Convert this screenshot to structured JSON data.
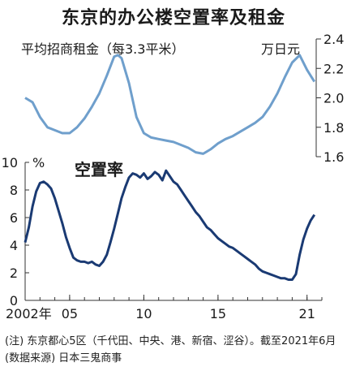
{
  "title": "东京的办公楼空置率及租金",
  "notes": {
    "line1": "(注) 东京都心5区（千代田、中央、港、新宿、涩谷）。截至2021年6月",
    "line2": "(数据来源) 日本三鬼商事"
  },
  "colors": {
    "rent": "#6f9fcc",
    "vacancy": "#1a3a73",
    "axis": "#333333"
  },
  "chart_data": [
    {
      "type": "line",
      "title": "平均招商租金（每3.3平米）",
      "ylabel": "万日元",
      "ylim": [
        1.6,
        2.4
      ],
      "yticks": [
        "1.6",
        "1.8",
        "2.0",
        "2.2",
        "2.4"
      ],
      "y_axis_side": "right",
      "series": [
        {
          "x": [
            2002.0,
            2002.5,
            2003.0,
            2003.5,
            2004.0,
            2004.5,
            2005.0,
            2005.5,
            2006.0,
            2006.5,
            2007.0,
            2007.5,
            2008.0,
            2008.25,
            2008.5,
            2009.0,
            2009.5,
            2010.0,
            2010.5,
            2011.0,
            2011.5,
            2012.0,
            2012.5,
            2013.0,
            2013.5,
            2014.0,
            2014.5,
            2015.0,
            2015.5,
            2016.0,
            2016.5,
            2017.0,
            2017.5,
            2018.0,
            2018.5,
            2019.0,
            2019.5,
            2020.0,
            2020.5,
            2021.0,
            2021.5
          ],
          "values": [
            2.0,
            1.97,
            1.87,
            1.8,
            1.78,
            1.76,
            1.76,
            1.8,
            1.86,
            1.94,
            2.03,
            2.15,
            2.28,
            2.29,
            2.27,
            2.1,
            1.87,
            1.76,
            1.73,
            1.72,
            1.71,
            1.7,
            1.68,
            1.66,
            1.63,
            1.62,
            1.65,
            1.69,
            1.72,
            1.74,
            1.77,
            1.8,
            1.83,
            1.87,
            1.94,
            2.03,
            2.14,
            2.24,
            2.29,
            2.19,
            2.11
          ]
        }
      ]
    },
    {
      "type": "line",
      "title": "空置率",
      "ylabel": "%",
      "ylim": [
        0,
        10
      ],
      "yticks": [
        "0",
        "2",
        "4",
        "6",
        "8",
        "10"
      ],
      "xlim": [
        2002,
        2022
      ],
      "xticks": [
        {
          "v": 2002,
          "label": "2002年"
        },
        {
          "v": 2005,
          "label": "05"
        },
        {
          "v": 2010,
          "label": "10"
        },
        {
          "v": 2015,
          "label": "15"
        },
        {
          "v": 2021,
          "label": "21"
        }
      ],
      "series": [
        {
          "x": [
            2002.0,
            2002.25,
            2002.5,
            2002.75,
            2003.0,
            2003.25,
            2003.5,
            2003.75,
            2004.0,
            2004.25,
            2004.5,
            2004.75,
            2005.0,
            2005.25,
            2005.5,
            2005.75,
            2006.0,
            2006.25,
            2006.5,
            2006.75,
            2007.0,
            2007.25,
            2007.5,
            2007.75,
            2008.0,
            2008.25,
            2008.5,
            2008.75,
            2009.0,
            2009.25,
            2009.5,
            2009.75,
            2010.0,
            2010.25,
            2010.5,
            2010.75,
            2011.0,
            2011.25,
            2011.5,
            2011.75,
            2012.0,
            2012.25,
            2012.5,
            2012.75,
            2013.0,
            2013.25,
            2013.5,
            2013.75,
            2014.0,
            2014.25,
            2014.5,
            2014.75,
            2015.0,
            2015.25,
            2015.5,
            2015.75,
            2016.0,
            2016.25,
            2016.5,
            2016.75,
            2017.0,
            2017.25,
            2017.5,
            2017.75,
            2018.0,
            2018.25,
            2018.5,
            2018.75,
            2019.0,
            2019.25,
            2019.5,
            2019.75,
            2020.0,
            2020.25,
            2020.5,
            2020.75,
            2021.0,
            2021.25,
            2021.5
          ],
          "values": [
            4.2,
            5.3,
            6.8,
            7.9,
            8.5,
            8.6,
            8.4,
            8.1,
            7.4,
            6.5,
            5.6,
            4.6,
            3.8,
            3.1,
            2.9,
            2.8,
            2.8,
            2.7,
            2.8,
            2.6,
            2.5,
            2.8,
            3.3,
            4.2,
            5.2,
            6.3,
            7.4,
            8.2,
            8.9,
            9.2,
            9.1,
            8.9,
            9.2,
            8.8,
            9.0,
            9.3,
            9.1,
            8.7,
            9.4,
            9.0,
            8.6,
            8.4,
            8.0,
            7.6,
            7.2,
            6.8,
            6.4,
            6.1,
            5.7,
            5.3,
            5.1,
            4.8,
            4.5,
            4.3,
            4.1,
            3.9,
            3.8,
            3.6,
            3.4,
            3.2,
            3.0,
            2.8,
            2.6,
            2.3,
            2.1,
            2.0,
            1.9,
            1.8,
            1.7,
            1.6,
            1.6,
            1.5,
            1.5,
            1.9,
            3.3,
            4.4,
            5.2,
            5.8,
            6.2
          ]
        }
      ]
    }
  ]
}
